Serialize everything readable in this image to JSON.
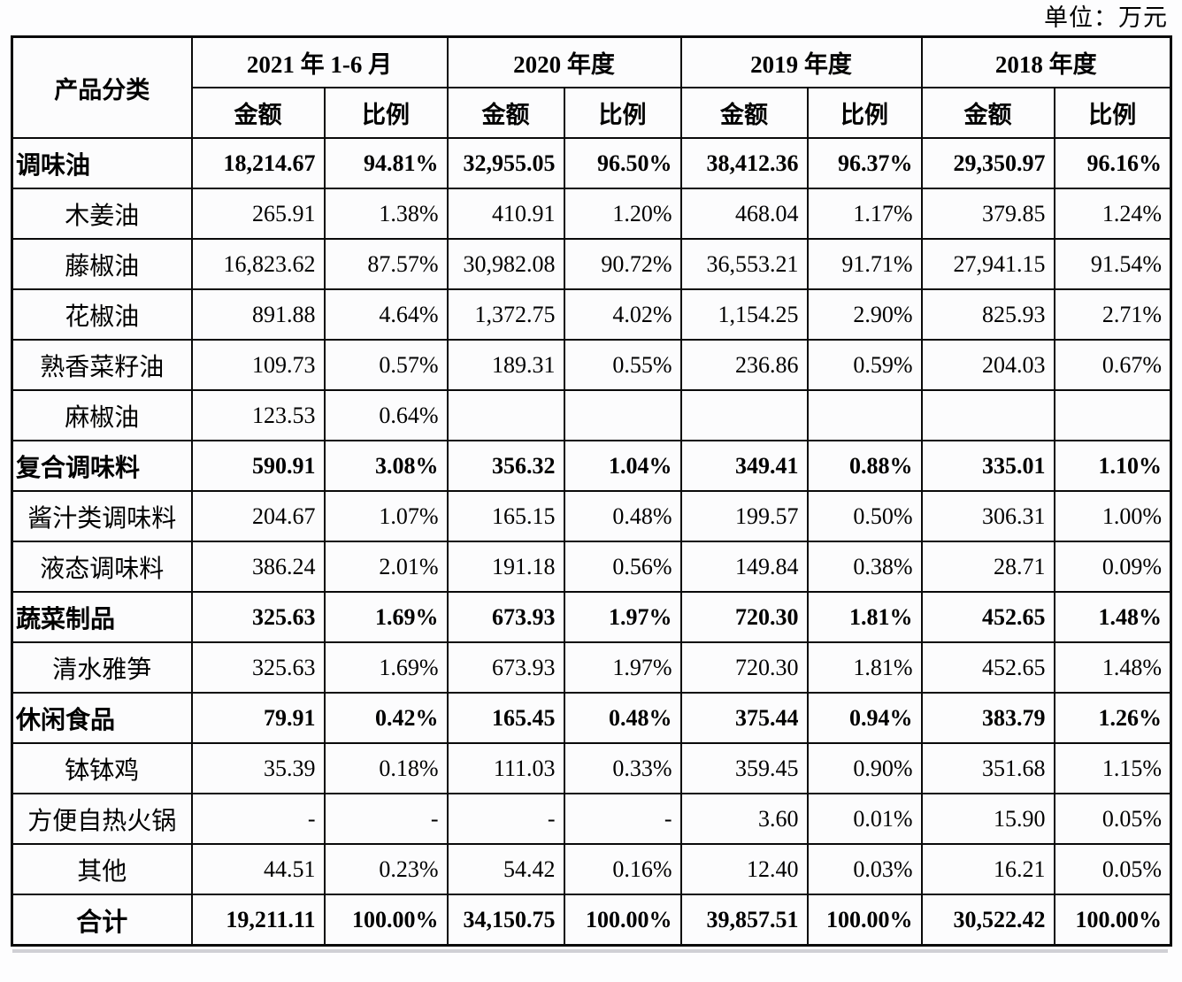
{
  "unit_label": "单位：万元",
  "table": {
    "corner_header": "产品分类",
    "year_groups": [
      "2021 年 1-6 月",
      "2020 年度",
      "2019 年度",
      "2018 年度"
    ],
    "sub_headers": {
      "amount": "金额",
      "ratio": "比例"
    },
    "rows": [
      {
        "label": "调味油",
        "style": "group",
        "values": [
          "18,214.67",
          "94.81%",
          "32,955.05",
          "96.50%",
          "38,412.36",
          "96.37%",
          "29,350.97",
          "96.16%"
        ]
      },
      {
        "label": "木姜油",
        "style": "sub",
        "values": [
          "265.91",
          "1.38%",
          "410.91",
          "1.20%",
          "468.04",
          "1.17%",
          "379.85",
          "1.24%"
        ]
      },
      {
        "label": "藤椒油",
        "style": "sub",
        "values": [
          "16,823.62",
          "87.57%",
          "30,982.08",
          "90.72%",
          "36,553.21",
          "91.71%",
          "27,941.15",
          "91.54%"
        ]
      },
      {
        "label": "花椒油",
        "style": "sub",
        "values": [
          "891.88",
          "4.64%",
          "1,372.75",
          "4.02%",
          "1,154.25",
          "2.90%",
          "825.93",
          "2.71%"
        ]
      },
      {
        "label": "熟香菜籽油",
        "style": "sub",
        "values": [
          "109.73",
          "0.57%",
          "189.31",
          "0.55%",
          "236.86",
          "0.59%",
          "204.03",
          "0.67%"
        ]
      },
      {
        "label": "麻椒油",
        "style": "sub",
        "values": [
          "123.53",
          "0.64%",
          "",
          "",
          "",
          "",
          "",
          ""
        ]
      },
      {
        "label": "复合调味料",
        "style": "group",
        "values": [
          "590.91",
          "3.08%",
          "356.32",
          "1.04%",
          "349.41",
          "0.88%",
          "335.01",
          "1.10%"
        ]
      },
      {
        "label": "酱汁类调味料",
        "style": "sub",
        "values": [
          "204.67",
          "1.07%",
          "165.15",
          "0.48%",
          "199.57",
          "0.50%",
          "306.31",
          "1.00%"
        ]
      },
      {
        "label": "液态调味料",
        "style": "sub",
        "values": [
          "386.24",
          "2.01%",
          "191.18",
          "0.56%",
          "149.84",
          "0.38%",
          "28.71",
          "0.09%"
        ]
      },
      {
        "label": "蔬菜制品",
        "style": "group",
        "values": [
          "325.63",
          "1.69%",
          "673.93",
          "1.97%",
          "720.30",
          "1.81%",
          "452.65",
          "1.48%"
        ]
      },
      {
        "label": "清水雅笋",
        "style": "sub",
        "values": [
          "325.63",
          "1.69%",
          "673.93",
          "1.97%",
          "720.30",
          "1.81%",
          "452.65",
          "1.48%"
        ]
      },
      {
        "label": "休闲食品",
        "style": "group",
        "values": [
          "79.91",
          "0.42%",
          "165.45",
          "0.48%",
          "375.44",
          "0.94%",
          "383.79",
          "1.26%"
        ]
      },
      {
        "label": "钵钵鸡",
        "style": "sub",
        "values": [
          "35.39",
          "0.18%",
          "111.03",
          "0.33%",
          "359.45",
          "0.90%",
          "351.68",
          "1.15%"
        ]
      },
      {
        "label": "方便自热火锅",
        "style": "sub",
        "values": [
          "-",
          "-",
          "-",
          "-",
          "3.60",
          "0.01%",
          "15.90",
          "0.05%"
        ]
      },
      {
        "label": "其他",
        "style": "sub",
        "values": [
          "44.51",
          "0.23%",
          "54.42",
          "0.16%",
          "12.40",
          "0.03%",
          "16.21",
          "0.05%"
        ]
      },
      {
        "label": "合计",
        "style": "total",
        "values": [
          "19,211.11",
          "100.00%",
          "34,150.75",
          "100.00%",
          "39,857.51",
          "100.00%",
          "30,522.42",
          "100.00%"
        ]
      }
    ]
  }
}
